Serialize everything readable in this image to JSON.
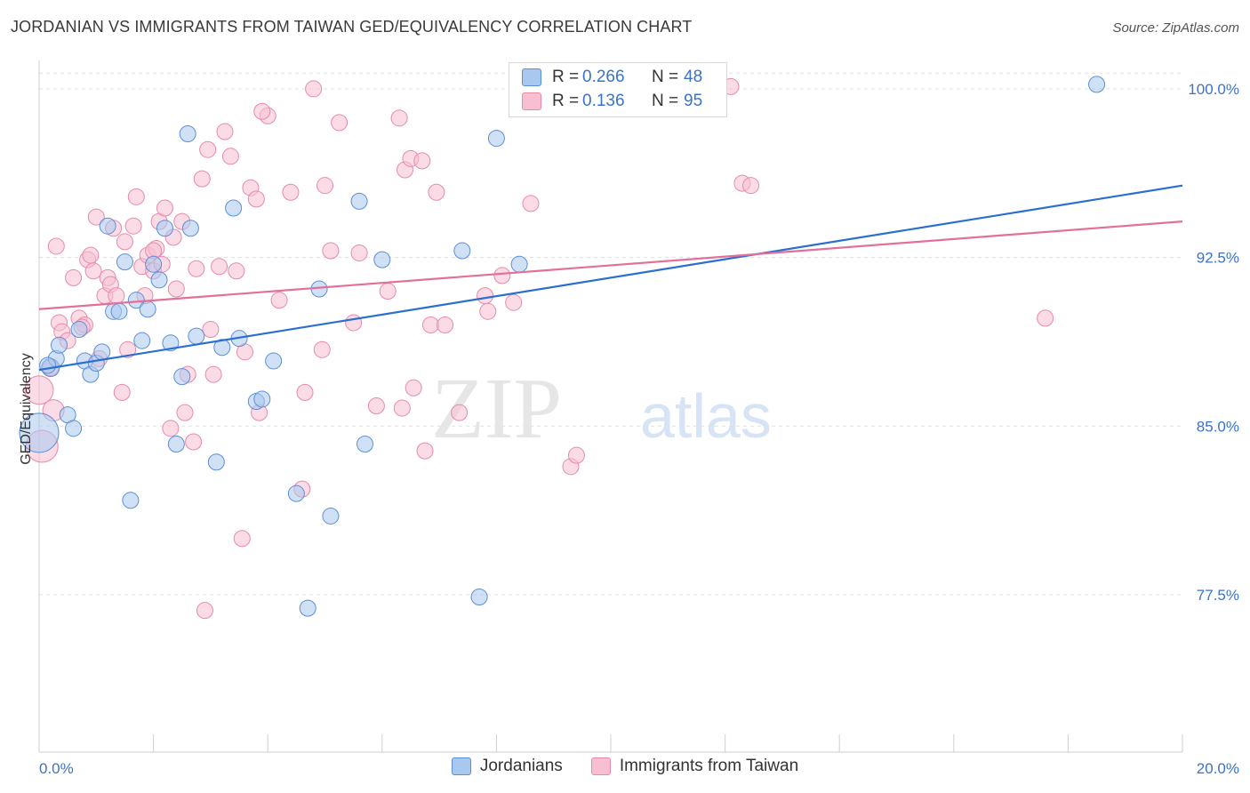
{
  "header": {
    "title": "JORDANIAN VS IMMIGRANTS FROM TAIWAN GED/EQUIVALENCY CORRELATION CHART",
    "source": "Source: ZipAtlas.com"
  },
  "legend": {
    "rows": [
      {
        "r_label": "R =",
        "r_value": "0.266",
        "n_label": "N =",
        "n_value": "48"
      },
      {
        "r_label": "R =",
        "r_value": "0.136",
        "n_label": "N =",
        "n_value": "95"
      }
    ],
    "bottom": [
      "Jordanians",
      "Immigrants from Taiwan"
    ]
  },
  "watermark": {
    "part1": "ZIP",
    "part2": "atlas"
  },
  "colors": {
    "blue_fill": "#a9c8ef",
    "blue_stroke": "#5b8fd6",
    "blue_line": "#2a6fd0",
    "pink_fill": "#f7bfd1",
    "pink_stroke": "#e78aa8",
    "pink_line": "#e2709a",
    "axis_text": "#3a73c8",
    "grid": "#e0e0e0"
  },
  "chart_data": {
    "type": "scatter",
    "title": "JORDANIAN VS IMMIGRANTS FROM TAIWAN GED/EQUIVALENCY CORRELATION CHART",
    "xlabel": "",
    "ylabel": "GED/Equivalency",
    "xlim": [
      0,
      20
    ],
    "ylim": [
      70.5,
      101.5
    ],
    "x_tick_labels": [
      "0.0%",
      "20.0%"
    ],
    "y_ticks": [
      77.5,
      85.0,
      92.5,
      100.0
    ],
    "y_tick_labels": [
      "77.5%",
      "85.0%",
      "92.5%",
      "100.0%"
    ],
    "grid": true,
    "legend_position": "top-center",
    "series": [
      {
        "name": "Jordanians",
        "color": "#a9c8ef",
        "trend": {
          "x": [
            0,
            20
          ],
          "y": [
            87.5,
            95.7
          ]
        },
        "points": [
          [
            0.0,
            84.7,
            22
          ],
          [
            0.2,
            87.6,
            10
          ],
          [
            0.3,
            88.0,
            9
          ],
          [
            0.35,
            88.6,
            9
          ],
          [
            0.5,
            85.5,
            9
          ],
          [
            0.6,
            84.9,
            9
          ],
          [
            0.8,
            87.9,
            9
          ],
          [
            0.9,
            87.3,
            9
          ],
          [
            1.0,
            87.8,
            9
          ],
          [
            1.1,
            88.3,
            9
          ],
          [
            0.7,
            89.3,
            9
          ],
          [
            1.2,
            93.9,
            9
          ],
          [
            1.3,
            90.1,
            9
          ],
          [
            1.4,
            90.1,
            9
          ],
          [
            1.5,
            92.3,
            9
          ],
          [
            1.6,
            81.7,
            9
          ],
          [
            1.7,
            90.6,
            9
          ],
          [
            1.8,
            88.8,
            9
          ],
          [
            1.9,
            90.2,
            9
          ],
          [
            2.0,
            92.2,
            9
          ],
          [
            2.1,
            91.5,
            9
          ],
          [
            2.2,
            93.8,
            9
          ],
          [
            2.3,
            88.7,
            9
          ],
          [
            2.4,
            84.2,
            9
          ],
          [
            2.5,
            87.2,
            9
          ],
          [
            2.6,
            98.0,
            9
          ],
          [
            2.65,
            93.8,
            9
          ],
          [
            2.75,
            89.0,
            9
          ],
          [
            3.1,
            83.4,
            9
          ],
          [
            3.2,
            88.5,
            9
          ],
          [
            3.4,
            94.7,
            9
          ],
          [
            3.5,
            88.9,
            9
          ],
          [
            3.8,
            86.1,
            9
          ],
          [
            3.9,
            86.2,
            9
          ],
          [
            4.1,
            87.9,
            9
          ],
          [
            4.5,
            82.0,
            9
          ],
          [
            4.7,
            76.9,
            9
          ],
          [
            4.9,
            91.1,
            9
          ],
          [
            5.1,
            81.0,
            9
          ],
          [
            5.6,
            95.0,
            9
          ],
          [
            5.7,
            84.2,
            9
          ],
          [
            6.0,
            92.4,
            9
          ],
          [
            7.4,
            92.8,
            9
          ],
          [
            7.7,
            77.4,
            9
          ],
          [
            8.0,
            97.8,
            9
          ],
          [
            8.4,
            92.2,
            9
          ],
          [
            18.5,
            100.2,
            9
          ],
          [
            0.15,
            87.7,
            9
          ]
        ]
      },
      {
        "name": "Immigrants from Taiwan",
        "color": "#f7bfd1",
        "trend": {
          "x": [
            0,
            20
          ],
          "y": [
            90.2,
            94.1
          ]
        },
        "points": [
          [
            0.0,
            86.6,
            16
          ],
          [
            0.05,
            84.1,
            18
          ],
          [
            0.2,
            87.6,
            9
          ],
          [
            0.25,
            85.7,
            12
          ],
          [
            0.35,
            89.6,
            9
          ],
          [
            0.4,
            89.2,
            9
          ],
          [
            0.5,
            88.8,
            9
          ],
          [
            0.6,
            91.6,
            9
          ],
          [
            0.7,
            89.8,
            9
          ],
          [
            0.8,
            89.5,
            9
          ],
          [
            0.85,
            92.4,
            9
          ],
          [
            0.9,
            92.6,
            9
          ],
          [
            0.95,
            91.9,
            9
          ],
          [
            1.0,
            94.3,
            9
          ],
          [
            1.05,
            88.0,
            9
          ],
          [
            1.15,
            90.8,
            9
          ],
          [
            1.2,
            91.6,
            9
          ],
          [
            1.25,
            91.3,
            9
          ],
          [
            1.3,
            93.8,
            9
          ],
          [
            1.45,
            86.5,
            9
          ],
          [
            1.5,
            93.2,
            9
          ],
          [
            1.55,
            88.4,
            9
          ],
          [
            1.65,
            93.9,
            9
          ],
          [
            1.7,
            95.2,
            9
          ],
          [
            1.8,
            92.1,
            9
          ],
          [
            1.85,
            90.8,
            9
          ],
          [
            1.9,
            92.6,
            9
          ],
          [
            2.0,
            91.9,
            9
          ],
          [
            2.05,
            92.9,
            9
          ],
          [
            2.1,
            94.1,
            9
          ],
          [
            2.15,
            92.2,
            9
          ],
          [
            2.2,
            94.7,
            9
          ],
          [
            2.3,
            84.9,
            9
          ],
          [
            2.35,
            93.4,
            9
          ],
          [
            2.4,
            91.1,
            9
          ],
          [
            2.5,
            94.1,
            9
          ],
          [
            2.55,
            85.6,
            9
          ],
          [
            2.6,
            87.3,
            9
          ],
          [
            2.7,
            84.3,
            9
          ],
          [
            2.75,
            92.0,
            9
          ],
          [
            2.85,
            96.0,
            9
          ],
          [
            2.9,
            76.8,
            9
          ],
          [
            2.95,
            97.3,
            9
          ],
          [
            3.0,
            89.3,
            9
          ],
          [
            3.05,
            87.3,
            9
          ],
          [
            3.15,
            92.1,
            9
          ],
          [
            3.25,
            98.1,
            9
          ],
          [
            3.35,
            97.0,
            9
          ],
          [
            3.45,
            91.9,
            9
          ],
          [
            3.55,
            80.0,
            9
          ],
          [
            3.6,
            88.3,
            9
          ],
          [
            3.7,
            95.6,
            9
          ],
          [
            3.8,
            95.1,
            9
          ],
          [
            3.85,
            85.6,
            9
          ],
          [
            4.0,
            98.8,
            9
          ],
          [
            4.2,
            90.6,
            9
          ],
          [
            4.4,
            95.4,
            9
          ],
          [
            4.6,
            82.2,
            9
          ],
          [
            4.65,
            86.5,
            9
          ],
          [
            4.8,
            100.0,
            9
          ],
          [
            4.95,
            88.4,
            9
          ],
          [
            5.0,
            95.7,
            9
          ],
          [
            5.1,
            92.8,
            9
          ],
          [
            5.25,
            98.5,
            9
          ],
          [
            5.6,
            92.7,
            9
          ],
          [
            5.9,
            85.9,
            9
          ],
          [
            6.1,
            91.0,
            9
          ],
          [
            6.3,
            98.7,
            9
          ],
          [
            6.35,
            85.8,
            9
          ],
          [
            6.4,
            96.4,
            9
          ],
          [
            6.5,
            96.9,
            9
          ],
          [
            6.55,
            86.7,
            9
          ],
          [
            6.7,
            96.8,
            9
          ],
          [
            6.75,
            83.9,
            9
          ],
          [
            6.85,
            89.5,
            9
          ],
          [
            6.95,
            95.4,
            9
          ],
          [
            7.1,
            89.5,
            9
          ],
          [
            7.35,
            85.6,
            9
          ],
          [
            7.8,
            90.8,
            9
          ],
          [
            7.85,
            90.1,
            9
          ],
          [
            8.1,
            91.7,
            9
          ],
          [
            8.3,
            90.5,
            9
          ],
          [
            8.6,
            94.9,
            9
          ],
          [
            9.3,
            83.2,
            9
          ],
          [
            9.4,
            83.7,
            9
          ],
          [
            12.1,
            100.1,
            9
          ],
          [
            12.3,
            95.8,
            9
          ],
          [
            12.45,
            95.7,
            9
          ],
          [
            17.6,
            89.8,
            9
          ],
          [
            0.3,
            93.0,
            9
          ],
          [
            1.35,
            90.8,
            9
          ],
          [
            2.0,
            92.8,
            9
          ],
          [
            3.9,
            99.0,
            9
          ],
          [
            5.5,
            89.6,
            9
          ],
          [
            0.75,
            89.4,
            9
          ]
        ]
      }
    ]
  }
}
